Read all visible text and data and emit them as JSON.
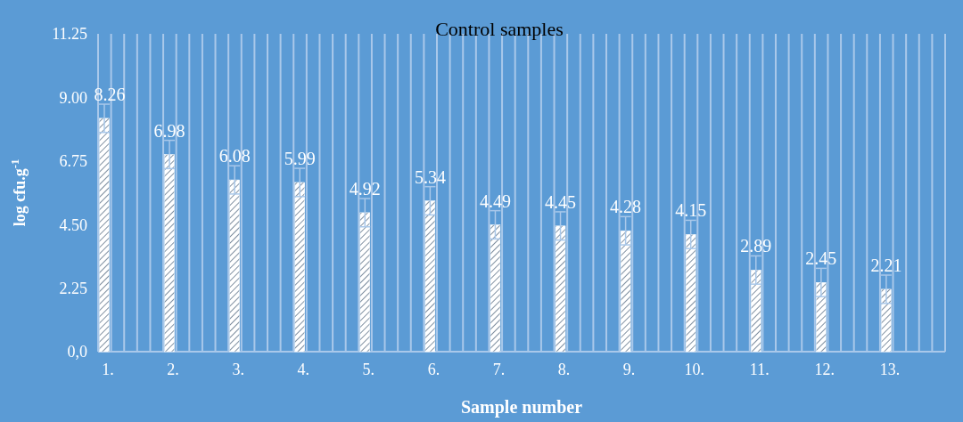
{
  "chart_data": {
    "type": "bar",
    "title": "Control samples",
    "xlabel": "Sample number",
    "ylabel": "log cfu.g$^{-1}$",
    "categories": [
      "1.",
      "2.",
      "3.",
      "4.",
      "5.",
      "6.",
      "7.",
      "8.",
      "9.",
      "10.",
      "11.",
      "12.",
      "13."
    ],
    "values": [
      8.26,
      6.98,
      6.08,
      5.99,
      4.92,
      5.34,
      4.49,
      4.45,
      4.28,
      4.15,
      2.89,
      2.45,
      2.21
    ],
    "errors": [
      0.5,
      0.5,
      0.5,
      0.5,
      0.5,
      0.5,
      0.5,
      0.5,
      0.5,
      0.5,
      0.5,
      0.5,
      0.5
    ],
    "color": "#ffffff",
    "data_labels": true,
    "grid": "x",
    "ylim": [
      0,
      11.25
    ],
    "yticks": [
      {
        "value": 0,
        "label": "0,0"
      },
      {
        "value": 2.25,
        "label": "2.25"
      },
      {
        "value": 4.5,
        "label": "4.50"
      },
      {
        "value": 6.75,
        "label": "6.75"
      },
      {
        "value": 9,
        "label": "9.00"
      },
      {
        "value": 11.25,
        "label": "11.25"
      }
    ]
  }
}
